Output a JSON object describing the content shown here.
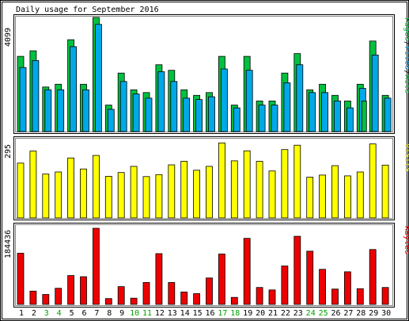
{
  "title": "Daily usage for September 2016",
  "colors": {
    "background": "#ffffff",
    "panel_frame": "#000000",
    "axis_text": "#000000",
    "pages": "#00c040",
    "files": "#00a8e8",
    "hits": "#00c040",
    "visits": "#ffff00",
    "kbytes": "#ee0000",
    "weekend_label": "#00a000"
  },
  "chart_data": [
    {
      "type": "bar",
      "panel": "hits_files_pages",
      "ymax_label": "4099",
      "ylim": [
        0,
        4099
      ],
      "legend": {
        "pages": "Pages",
        "sep1": "/",
        "files": "Files",
        "sep2": "/",
        "hits": "Hits"
      },
      "categories": [
        "1",
        "2",
        "3",
        "4",
        "5",
        "6",
        "7",
        "8",
        "9",
        "10",
        "11",
        "12",
        "13",
        "14",
        "15",
        "16",
        "17",
        "18",
        "19",
        "20",
        "21",
        "22",
        "23",
        "24",
        "25",
        "26",
        "27",
        "28",
        "29",
        "30"
      ],
      "series": [
        {
          "name": "Hits",
          "values": [
            2700,
            2900,
            1600,
            1700,
            3300,
            1700,
            4099,
            950,
            2100,
            1500,
            1400,
            2400,
            2200,
            1500,
            1300,
            1400,
            2700,
            950,
            2700,
            1100,
            1100,
            2100,
            2800,
            1500,
            1700,
            1300,
            1100,
            1700,
            3250,
            1300
          ]
        },
        {
          "name": "Files",
          "values": [
            2300,
            2550,
            1500,
            1500,
            3050,
            1500,
            3850,
            800,
            1800,
            1350,
            1200,
            2150,
            1800,
            1200,
            1150,
            1250,
            2250,
            850,
            2200,
            950,
            950,
            1750,
            2400,
            1400,
            1400,
            1100,
            850,
            1550,
            2750,
            1200
          ]
        },
        {
          "name": "Pages",
          "values": [
            0,
            0,
            0,
            0,
            0,
            0,
            0,
            0,
            0,
            0,
            0,
            0,
            0,
            0,
            0,
            0,
            0,
            0,
            0,
            0,
            0,
            0,
            0,
            0,
            0,
            0,
            0,
            1100,
            0,
            0
          ]
        }
      ]
    },
    {
      "type": "bar",
      "panel": "visits",
      "ymax_label": "295",
      "ylim": [
        0,
        295
      ],
      "legend": "Visits",
      "categories": [
        "1",
        "2",
        "3",
        "4",
        "5",
        "6",
        "7",
        "8",
        "9",
        "10",
        "11",
        "12",
        "13",
        "14",
        "15",
        "16",
        "17",
        "18",
        "19",
        "20",
        "21",
        "22",
        "23",
        "24",
        "25",
        "26",
        "27",
        "28",
        "29",
        "30"
      ],
      "series": [
        {
          "name": "Visits",
          "values": [
            215,
            262,
            172,
            180,
            235,
            192,
            245,
            163,
            178,
            202,
            162,
            170,
            208,
            222,
            187,
            202,
            294,
            224,
            263,
            222,
            184,
            268,
            285,
            160,
            168,
            205,
            165,
            180,
            290,
            207
          ]
        }
      ]
    },
    {
      "type": "bar",
      "panel": "kbytes",
      "ymax_label": "184436",
      "ylim": [
        0,
        184436
      ],
      "legend": "KBytes",
      "categories": [
        "1",
        "2",
        "3",
        "4",
        "5",
        "6",
        "7",
        "8",
        "9",
        "10",
        "11",
        "12",
        "13",
        "14",
        "15",
        "16",
        "17",
        "18",
        "19",
        "20",
        "21",
        "22",
        "23",
        "24",
        "25",
        "26",
        "27",
        "28",
        "29",
        "30"
      ],
      "series": [
        {
          "name": "KBytes",
          "values": [
            124000,
            32000,
            24000,
            39000,
            70000,
            67000,
            184436,
            14000,
            43000,
            15000,
            53000,
            123000,
            53000,
            30000,
            26000,
            64000,
            122000,
            17000,
            160000,
            41000,
            35000,
            93000,
            165000,
            129000,
            85000,
            37000,
            79000,
            38000,
            133000,
            41000
          ]
        }
      ]
    }
  ],
  "x_axis": {
    "labels": [
      "1",
      "2",
      "3",
      "4",
      "5",
      "6",
      "7",
      "8",
      "9",
      "10",
      "11",
      "12",
      "13",
      "14",
      "15",
      "16",
      "17",
      "18",
      "19",
      "20",
      "21",
      "22",
      "23",
      "24",
      "25",
      "26",
      "27",
      "28",
      "29",
      "30"
    ],
    "weekend": [
      false,
      false,
      true,
      true,
      false,
      false,
      false,
      false,
      false,
      true,
      true,
      false,
      false,
      false,
      false,
      false,
      true,
      true,
      false,
      false,
      false,
      false,
      false,
      true,
      true,
      false,
      false,
      false,
      false,
      false
    ]
  }
}
